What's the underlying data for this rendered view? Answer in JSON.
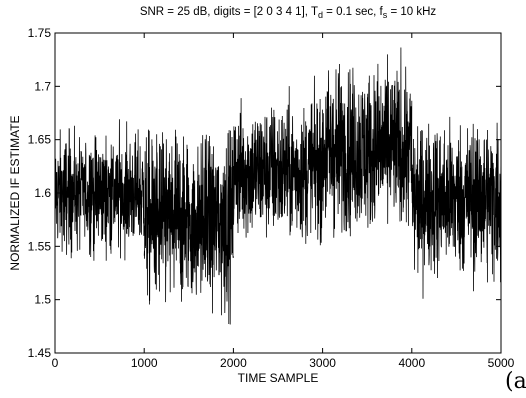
{
  "chart_data": {
    "type": "line",
    "title": {
      "prefix": "SNR = 25 dB, digits = [2 0 3 4 1], T",
      "sub1": "d",
      "middle": " = 0.1 sec, f",
      "sub2": "s",
      "suffix": " = 10 kHz"
    },
    "xlabel": "TIME  SAMPLE",
    "ylabel": "NORMALIZED  IF  ESTIMATE",
    "xlim": [
      0,
      5000
    ],
    "ylim": [
      1.45,
      1.75
    ],
    "xticks": [
      0,
      1000,
      2000,
      3000,
      4000,
      5000
    ],
    "xtick_labels": [
      "0",
      "1000",
      "2000",
      "3000",
      "4000",
      "5000"
    ],
    "yticks": [
      1.45,
      1.5,
      1.55,
      1.6,
      1.65,
      1.7,
      1.75
    ],
    "ytick_labels": [
      "1.45",
      "1.5",
      "1.55",
      "1.6",
      "1.65",
      "1.7",
      "1.75"
    ],
    "grid": false,
    "line_color": "#000000",
    "series": [
      {
        "segments": [
          {
            "x_start": 0,
            "x_end": 1000,
            "mean": 1.6,
            "min": 1.535,
            "max": 1.67
          },
          {
            "x_start": 1000,
            "x_end": 2000,
            "mean": 1.575,
            "min": 1.457,
            "max": 1.66
          },
          {
            "x_start": 2000,
            "x_end": 3000,
            "mean": 1.62,
            "min": 1.55,
            "max": 1.71
          },
          {
            "x_start": 3000,
            "x_end": 4000,
            "mean": 1.64,
            "min": 1.555,
            "max": 1.745
          },
          {
            "x_start": 4000,
            "x_end": 5000,
            "mean": 1.595,
            "min": 1.495,
            "max": 1.675
          }
        ]
      }
    ]
  },
  "panel_label": "(a)"
}
